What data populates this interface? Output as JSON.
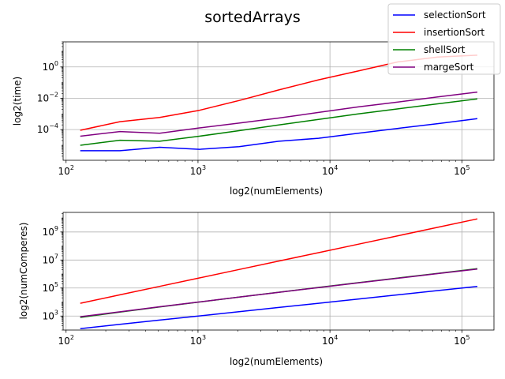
{
  "title": "sortedArrays",
  "legend": {
    "placement": "top-right",
    "entries": [
      {
        "name": "selectionSort",
        "color": "#0000ff"
      },
      {
        "name": "insertionSort",
        "color": "#ff0000"
      },
      {
        "name": "shellSort",
        "color": "#008000"
      },
      {
        "name": "margeSort",
        "color": "#800080"
      }
    ]
  },
  "chart_data": [
    {
      "type": "line",
      "xscale": "log",
      "yscale": "log",
      "grid": true,
      "xlabel": "log2(numElements)",
      "ylabel": "log2(time)",
      "xlim": [
        95,
        175000
      ],
      "ylim": [
        1.1e-06,
        40
      ],
      "xticks": [
        100,
        1000,
        10000,
        100000
      ],
      "xtick_labels": [
        {
          "b": "10",
          "e": "2"
        },
        {
          "b": "10",
          "e": "3"
        },
        {
          "b": "10",
          "e": "4"
        },
        {
          "b": "10",
          "e": "5"
        }
      ],
      "yticks": [
        0.0001,
        0.01,
        1
      ],
      "ytick_labels": [
        {
          "b": "10",
          "e": "−4"
        },
        {
          "b": "10",
          "e": "−2"
        },
        {
          "b": "10",
          "e": "0"
        }
      ],
      "x": [
        128,
        256,
        512,
        1024,
        2048,
        4096,
        8192,
        16384,
        32768,
        65536,
        131072
      ],
      "series": [
        {
          "name": "selectionSort",
          "color": "#0000ff",
          "values": [
            4.5e-06,
            4.5e-06,
            7.5e-06,
            5.5e-06,
            8.2e-06,
            1.8e-05,
            2.8e-05,
            5.8e-05,
            0.00012,
            0.00024,
            0.0005
          ]
        },
        {
          "name": "insertionSort",
          "color": "#ff0000",
          "values": [
            9e-05,
            0.00032,
            0.0006,
            0.0017,
            0.0072,
            0.034,
            0.15,
            0.55,
            2.1,
            4.3,
            5.6
          ]
        },
        {
          "name": "shellSort",
          "color": "#008000",
          "values": [
            1e-05,
            2.1e-05,
            1.8e-05,
            3.8e-05,
            8.5e-05,
            0.0002,
            0.00045,
            0.001,
            0.0021,
            0.0044,
            0.0092
          ]
        },
        {
          "name": "margeSort",
          "color": "#800080",
          "values": [
            3.8e-05,
            7.5e-05,
            5.8e-05,
            0.000128,
            0.00026,
            0.00055,
            0.00125,
            0.0028,
            0.0058,
            0.0121,
            0.025
          ]
        }
      ]
    },
    {
      "type": "line",
      "xscale": "log",
      "yscale": "log",
      "grid": true,
      "xlabel": "log2(numElements)",
      "ylabel": "log2(numComperes)",
      "xlim": [
        95,
        175000
      ],
      "ylim": [
        100,
        25000000000
      ],
      "xticks": [
        100,
        1000,
        10000,
        100000
      ],
      "xtick_labels": [
        {
          "b": "10",
          "e": "2"
        },
        {
          "b": "10",
          "e": "3"
        },
        {
          "b": "10",
          "e": "4"
        },
        {
          "b": "10",
          "e": "5"
        }
      ],
      "yticks": [
        1000,
        100000,
        10000000,
        1000000000
      ],
      "ytick_labels": [
        {
          "b": "10",
          "e": "3"
        },
        {
          "b": "10",
          "e": "5"
        },
        {
          "b": "10",
          "e": "7"
        },
        {
          "b": "10",
          "e": "9"
        }
      ],
      "x": [
        128,
        256,
        512,
        1024,
        2048,
        4096,
        8192,
        16384,
        32768,
        65536,
        131072
      ],
      "series": [
        {
          "name": "selectionSort",
          "color": "#0000ff",
          "values": [
            127,
            255,
            511,
            1023,
            2047,
            4095,
            8191,
            16383,
            32767,
            65535,
            131071
          ]
        },
        {
          "name": "insertionSort",
          "color": "#ff0000",
          "values": [
            8128,
            32640,
            130816,
            523776,
            2096128,
            8386560,
            33550336,
            134209536,
            536854528,
            2147450880,
            8589869056
          ]
        },
        {
          "name": "shellSort",
          "color": "#008000",
          "values": [
            800,
            1900,
            4400,
            10000,
            22500,
            50000,
            110000,
            240000,
            520000,
            1120000,
            2400000
          ]
        },
        {
          "name": "margeSort",
          "color": "#800080",
          "values": [
            900,
            2000,
            4600,
            10200,
            22600,
            49700,
            108000,
            233000,
            500000,
            1070000,
            2280000
          ]
        }
      ]
    }
  ]
}
